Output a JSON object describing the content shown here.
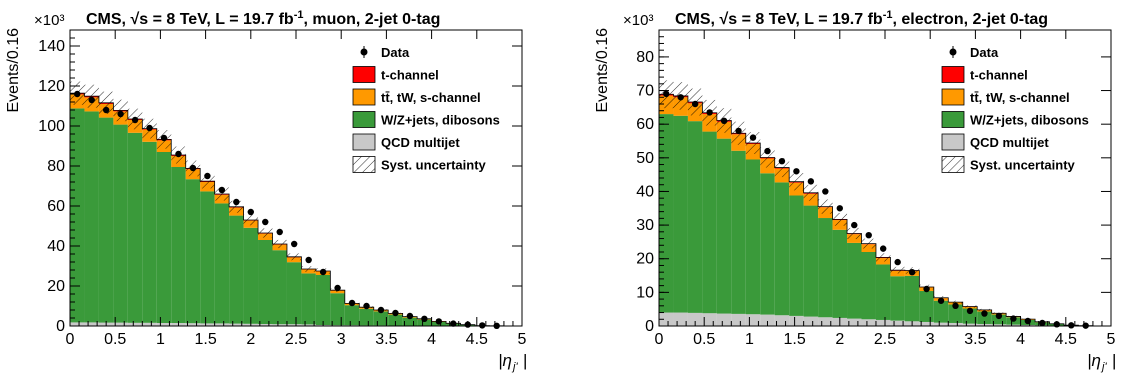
{
  "legend_entries": [
    {
      "kind": "data",
      "label": "Data"
    },
    {
      "kind": "box",
      "label": "t-channel",
      "color": "#ff0000"
    },
    {
      "kind": "box",
      "label": "tt̄, tW, s-channel",
      "color": "#ff9900"
    },
    {
      "kind": "box",
      "label": "W/Z+jets, dibosons",
      "color": "#3a9a3a"
    },
    {
      "kind": "box",
      "label": "QCD multijet",
      "color": "#c8c8c8"
    },
    {
      "kind": "hatch",
      "label": "Syst. uncertainty"
    }
  ],
  "chart_data": [
    {
      "type": "bar",
      "stacked": true,
      "title": "CMS, √s = 8 TeV, L = 19.7 fb-1, muon, 2-jet 0-tag",
      "exponent_label": "×10³",
      "ylabel": "Events/0.16",
      "xlabel": "|ηj'|",
      "x_edges": [
        0,
        0.16,
        0.32,
        0.48,
        0.64,
        0.8,
        0.96,
        1.12,
        1.28,
        1.44,
        1.6,
        1.76,
        1.92,
        2.08,
        2.24,
        2.4,
        2.56,
        2.72,
        2.88,
        3.04,
        3.2,
        3.36,
        3.52,
        3.68,
        3.84,
        4.0,
        4.16,
        4.32,
        4.48,
        4.64,
        4.8
      ],
      "xlim": [
        0,
        5
      ],
      "ylim": [
        0,
        148
      ],
      "xticks": [
        "0",
        "0.5",
        "1",
        "1.5",
        "2",
        "2.5",
        "3",
        "3.5",
        "4",
        "4.5",
        "5"
      ],
      "yticks": [
        "0",
        "20",
        "40",
        "60",
        "80",
        "100",
        "120",
        "140"
      ],
      "ytick_values": [
        0,
        20,
        40,
        60,
        80,
        100,
        120,
        140
      ],
      "series": [
        {
          "name": "QCD multijet",
          "color": "#c8c8c8",
          "values": [
            1.8,
            1.8,
            1.7,
            1.7,
            1.6,
            1.6,
            1.5,
            1.5,
            1.4,
            1.3,
            1.3,
            1.2,
            1.1,
            1.0,
            0.9,
            0.9,
            0.8,
            0.5,
            0.4,
            0.4,
            0.3,
            0.3,
            0.2,
            0.2,
            0.2,
            0.1,
            0.1,
            0.1,
            0.0,
            0.0
          ]
        },
        {
          "name": "W/Z+jets, dibosons",
          "color": "#3a9a3a",
          "values": [
            107,
            105.5,
            102.5,
            99,
            95,
            90.5,
            85.5,
            78,
            72,
            66,
            60,
            54,
            48,
            42,
            37,
            31,
            25.5,
            25,
            16,
            10,
            8.3,
            7,
            5.5,
            4,
            3,
            1.9,
            1.1,
            0.5,
            0.2,
            0.1
          ]
        },
        {
          "name": "tt̄, tW, s-channel",
          "color": "#ff9900",
          "values": [
            7,
            7,
            6.8,
            6.6,
            6.4,
            6.1,
            5.8,
            5.5,
            5.0,
            4.7,
            4.3,
            4.0,
            3.6,
            3.2,
            2.8,
            2.4,
            2.0,
            1.8,
            1.3,
            0.8,
            0.7,
            0.6,
            0.5,
            0.4,
            0.3,
            0.2,
            0.1,
            0.05,
            0.0,
            0.0
          ]
        },
        {
          "name": "t-channel",
          "color": "#ff0000",
          "values": [
            0.6,
            0.6,
            0.6,
            0.5,
            0.5,
            0.5,
            0.5,
            0.5,
            0.4,
            0.4,
            0.4,
            0.4,
            0.3,
            0.3,
            0.3,
            0.3,
            0.2,
            0.2,
            0.2,
            0.1,
            0.1,
            0.1,
            0.1,
            0.1,
            0.1,
            0.1,
            0.05,
            0.05,
            0.0,
            0.0
          ]
        }
      ],
      "uncertainty_frac": 0.05,
      "data": {
        "name": "Data",
        "x": [
          0.08,
          0.24,
          0.4,
          0.56,
          0.72,
          0.88,
          1.04,
          1.2,
          1.36,
          1.52,
          1.68,
          1.84,
          2.0,
          2.16,
          2.32,
          2.48,
          2.64,
          2.8,
          2.96,
          3.12,
          3.28,
          3.44,
          3.6,
          3.76,
          3.92,
          4.08,
          4.24,
          4.4,
          4.56,
          4.72
        ],
        "y": [
          116,
          113,
          108,
          106,
          103,
          99,
          94,
          86,
          79,
          75,
          68,
          62,
          57,
          52,
          47,
          41,
          33,
          27,
          19,
          11.5,
          10,
          8,
          6.5,
          5,
          3.6,
          2.3,
          1.2,
          0.7,
          0.3,
          0.1
        ]
      }
    },
    {
      "type": "bar",
      "stacked": true,
      "title": "CMS, √s = 8 TeV, L = 19.7 fb-1, electron, 2-jet 0-tag",
      "exponent_label": "×10³",
      "ylabel": "Events/0.16",
      "xlabel": "|ηj'|",
      "x_edges": [
        0,
        0.16,
        0.32,
        0.48,
        0.64,
        0.8,
        0.96,
        1.12,
        1.28,
        1.44,
        1.6,
        1.76,
        1.92,
        2.08,
        2.24,
        2.4,
        2.56,
        2.72,
        2.88,
        3.04,
        3.2,
        3.36,
        3.52,
        3.68,
        3.84,
        4.0,
        4.16,
        4.32,
        4.48,
        4.64,
        4.8
      ],
      "xlim": [
        0,
        5
      ],
      "ylim": [
        0,
        88
      ],
      "xticks": [
        "0",
        "0.5",
        "1",
        "1.5",
        "2",
        "2.5",
        "3",
        "3.5",
        "4",
        "4.5",
        "5"
      ],
      "yticks": [
        "0",
        "10",
        "20",
        "30",
        "40",
        "50",
        "60",
        "70",
        "80"
      ],
      "ytick_values": [
        0,
        10,
        20,
        30,
        40,
        50,
        60,
        70,
        80
      ],
      "series": [
        {
          "name": "QCD multijet",
          "color": "#c8c8c8",
          "values": [
            4.0,
            4.0,
            3.9,
            3.8,
            3.7,
            3.6,
            3.5,
            3.4,
            3.2,
            3.0,
            2.8,
            2.6,
            2.4,
            2.2,
            2.0,
            1.8,
            1.6,
            1.4,
            1.2,
            1.0,
            0.9,
            0.7,
            0.6,
            0.5,
            0.4,
            0.3,
            0.2,
            0.1,
            0.05,
            0.0
          ]
        },
        {
          "name": "W/Z+jets, dibosons",
          "color": "#3a9a3a",
          "values": [
            59,
            58.5,
            57,
            54,
            52,
            48.5,
            46,
            42,
            39.5,
            35.8,
            33,
            29.5,
            26.2,
            22.5,
            20,
            16.5,
            13.2,
            13.5,
            9.2,
            6.5,
            5.5,
            4.5,
            3.7,
            2.9,
            2.2,
            1.5,
            0.9,
            0.5,
            0.2,
            0.1
          ]
        },
        {
          "name": "tt̄, tW, s-channel",
          "color": "#ff9900",
          "values": [
            5.5,
            5.5,
            5.3,
            5.2,
            5.0,
            4.9,
            4.6,
            4.4,
            4.1,
            3.8,
            3.5,
            3.2,
            2.9,
            2.6,
            2.3,
            1.9,
            1.6,
            1.5,
            1.1,
            0.8,
            0.6,
            0.5,
            0.4,
            0.3,
            0.2,
            0.2,
            0.1,
            0.05,
            0.0,
            0.0
          ]
        },
        {
          "name": "t-channel",
          "color": "#ff0000",
          "values": [
            0.4,
            0.4,
            0.4,
            0.4,
            0.4,
            0.3,
            0.3,
            0.3,
            0.3,
            0.3,
            0.3,
            0.2,
            0.2,
            0.2,
            0.2,
            0.2,
            0.2,
            0.1,
            0.1,
            0.1,
            0.1,
            0.1,
            0.1,
            0.1,
            0.05,
            0.05,
            0.05,
            0.0,
            0.0,
            0.0
          ]
        }
      ],
      "uncertainty_frac": 0.06,
      "data": {
        "name": "Data",
        "x": [
          0.08,
          0.24,
          0.4,
          0.56,
          0.72,
          0.88,
          1.04,
          1.2,
          1.36,
          1.52,
          1.68,
          1.84,
          2.0,
          2.16,
          2.32,
          2.48,
          2.64,
          2.8,
          2.96,
          3.12,
          3.28,
          3.44,
          3.6,
          3.76,
          3.92,
          4.08,
          4.24,
          4.4,
          4.56,
          4.72
        ],
        "y": [
          69,
          68,
          66,
          63.5,
          61,
          58,
          56,
          52,
          49,
          46,
          43,
          40,
          35,
          30,
          27,
          23,
          19,
          16,
          11,
          7.5,
          6,
          4.5,
          3.7,
          3,
          2.2,
          1.5,
          0.9,
          0.5,
          0.2,
          0.1
        ]
      }
    }
  ]
}
